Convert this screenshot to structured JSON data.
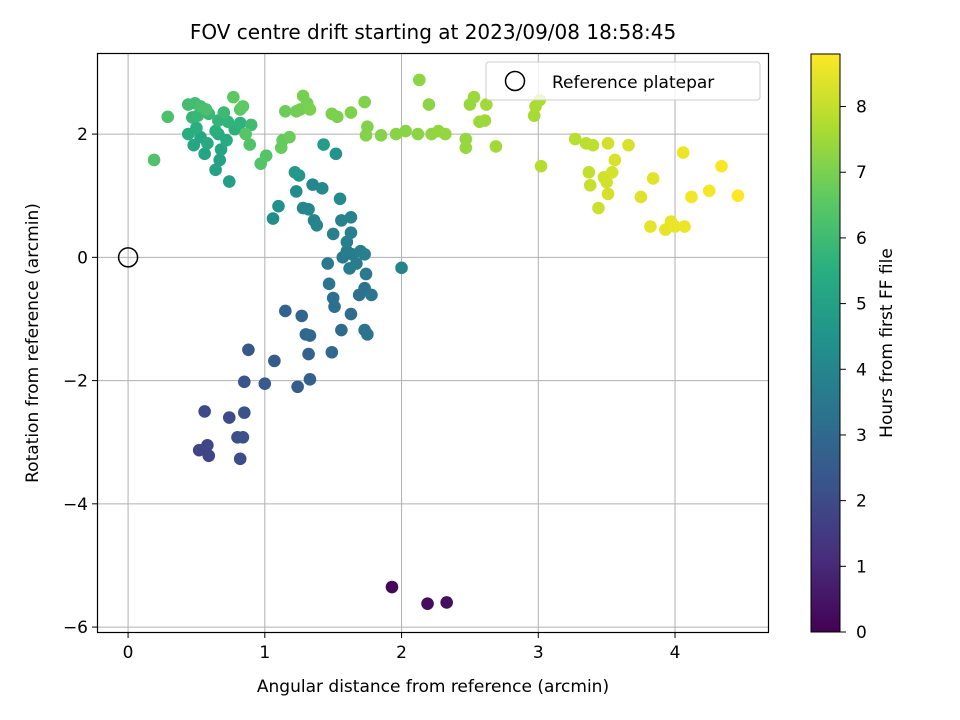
{
  "chart_data": {
    "type": "scatter",
    "title": "FOV centre drift starting at 2023/09/08 18:58:45",
    "xlabel": "Angular distance from reference (arcmin)",
    "ylabel": "Rotation from reference (arcmin)",
    "xlim": [
      -0.22,
      4.68
    ],
    "ylim": [
      -6.08,
      3.3
    ],
    "xticks": [
      0,
      1,
      2,
      3,
      4
    ],
    "xtick_labels": [
      "0",
      "1",
      "2",
      "3",
      "4"
    ],
    "yticks": [
      -6,
      -4,
      -2,
      0,
      2
    ],
    "ytick_labels": [
      "−6",
      "−4",
      "−2",
      "0",
      "2"
    ],
    "grid": true,
    "legend": {
      "placement": "top-right",
      "entries": [
        "Reference platepar"
      ]
    },
    "reference_point": {
      "label": "Reference platepar",
      "x": 0,
      "y": 0
    },
    "colorbar": {
      "label": "Hours from first FF file",
      "colormap": "viridis",
      "range": [
        0,
        8.8
      ],
      "ticks": [
        0,
        1,
        2,
        3,
        4,
        5,
        6,
        7,
        8
      ],
      "tick_labels": [
        "0",
        "1",
        "2",
        "3",
        "4",
        "5",
        "6",
        "7",
        "8"
      ]
    },
    "series": [
      {
        "points": [
          {
            "x": 1.93,
            "y": -5.35,
            "t": 0.15
          },
          {
            "x": 2.19,
            "y": -5.62,
            "t": 0.25
          },
          {
            "x": 2.33,
            "y": -5.6,
            "t": 0.35
          },
          {
            "x": 0.52,
            "y": -3.13,
            "t": 1.8
          },
          {
            "x": 0.59,
            "y": -3.22,
            "t": 1.85
          },
          {
            "x": 0.58,
            "y": -3.05,
            "t": 1.9
          },
          {
            "x": 0.56,
            "y": -2.5,
            "t": 1.95
          },
          {
            "x": 0.74,
            "y": -2.6,
            "t": 2.0
          },
          {
            "x": 0.82,
            "y": -3.27,
            "t": 2.05
          },
          {
            "x": 0.8,
            "y": -2.92,
            "t": 2.1
          },
          {
            "x": 0.84,
            "y": -2.92,
            "t": 2.15
          },
          {
            "x": 0.85,
            "y": -2.52,
            "t": 2.2
          },
          {
            "x": 0.85,
            "y": -2.02,
            "t": 2.3
          },
          {
            "x": 0.88,
            "y": -1.5,
            "t": 2.4
          },
          {
            "x": 1.0,
            "y": -2.05,
            "t": 2.5
          },
          {
            "x": 1.07,
            "y": -1.68,
            "t": 2.55
          },
          {
            "x": 1.24,
            "y": -2.1,
            "t": 2.6
          },
          {
            "x": 1.33,
            "y": -1.98,
            "t": 2.7
          },
          {
            "x": 1.32,
            "y": -1.57,
            "t": 2.75
          },
          {
            "x": 1.15,
            "y": -0.87,
            "t": 2.8
          },
          {
            "x": 1.27,
            "y": -0.95,
            "t": 2.85
          },
          {
            "x": 1.3,
            "y": -1.25,
            "t": 2.9
          },
          {
            "x": 1.33,
            "y": -1.27,
            "t": 2.95
          },
          {
            "x": 1.49,
            "y": -1.54,
            "t": 3.0
          },
          {
            "x": 1.56,
            "y": -1.18,
            "t": 3.05
          },
          {
            "x": 1.63,
            "y": -0.92,
            "t": 3.1
          },
          {
            "x": 1.5,
            "y": -0.66,
            "t": 3.15
          },
          {
            "x": 1.51,
            "y": -0.8,
            "t": 3.2
          },
          {
            "x": 1.69,
            "y": -0.61,
            "t": 3.25
          },
          {
            "x": 1.73,
            "y": -0.5,
            "t": 3.3
          },
          {
            "x": 1.73,
            "y": -1.18,
            "t": 3.35
          },
          {
            "x": 1.75,
            "y": -1.25,
            "t": 3.38
          },
          {
            "x": 1.78,
            "y": -0.61,
            "t": 3.42
          },
          {
            "x": 1.47,
            "y": -0.43,
            "t": 3.45
          },
          {
            "x": 1.46,
            "y": -0.1,
            "t": 3.5
          },
          {
            "x": 1.74,
            "y": -0.27,
            "t": 3.55
          },
          {
            "x": 1.57,
            "y": 0.0,
            "t": 3.6
          },
          {
            "x": 1.6,
            "y": 0.1,
            "t": 3.62
          },
          {
            "x": 1.62,
            "y": -0.18,
            "t": 3.65
          },
          {
            "x": 1.64,
            "y": 0.05,
            "t": 3.68
          },
          {
            "x": 1.67,
            "y": -0.1,
            "t": 3.7
          },
          {
            "x": 1.7,
            "y": 0.1,
            "t": 3.72
          },
          {
            "x": 1.73,
            "y": 0.05,
            "t": 3.75
          },
          {
            "x": 1.6,
            "y": 0.25,
            "t": 3.78
          },
          {
            "x": 1.63,
            "y": 0.4,
            "t": 3.8
          },
          {
            "x": 1.5,
            "y": 0.38,
            "t": 3.82
          },
          {
            "x": 1.56,
            "y": 0.6,
            "t": 3.85
          },
          {
            "x": 1.63,
            "y": 0.65,
            "t": 3.88
          },
          {
            "x": 2.0,
            "y": -0.17,
            "t": 3.9
          },
          {
            "x": 1.36,
            "y": 0.6,
            "t": 3.93
          },
          {
            "x": 1.38,
            "y": 0.52,
            "t": 3.95
          },
          {
            "x": 1.28,
            "y": 0.8,
            "t": 3.98
          },
          {
            "x": 1.32,
            "y": 0.78,
            "t": 4.0
          },
          {
            "x": 1.35,
            "y": 1.18,
            "t": 4.05
          },
          {
            "x": 1.42,
            "y": 1.12,
            "t": 4.1
          },
          {
            "x": 1.55,
            "y": 0.95,
            "t": 4.15
          },
          {
            "x": 1.23,
            "y": 1.07,
            "t": 4.2
          },
          {
            "x": 1.06,
            "y": 0.63,
            "t": 4.3
          },
          {
            "x": 1.1,
            "y": 0.83,
            "t": 4.4
          },
          {
            "x": 1.52,
            "y": 1.68,
            "t": 4.5
          },
          {
            "x": 1.25,
            "y": 1.33,
            "t": 4.6
          },
          {
            "x": 1.22,
            "y": 1.38,
            "t": 4.7
          },
          {
            "x": 1.43,
            "y": 1.83,
            "t": 4.8
          },
          {
            "x": 0.74,
            "y": 1.23,
            "t": 4.9
          },
          {
            "x": 0.64,
            "y": 1.42,
            "t": 5.0
          },
          {
            "x": 0.67,
            "y": 1.58,
            "t": 5.05
          },
          {
            "x": 0.56,
            "y": 1.68,
            "t": 5.1
          },
          {
            "x": 0.68,
            "y": 1.75,
            "t": 5.15
          },
          {
            "x": 0.48,
            "y": 1.82,
            "t": 5.2
          },
          {
            "x": 0.53,
            "y": 1.95,
            "t": 5.25
          },
          {
            "x": 0.58,
            "y": 1.85,
            "t": 5.3
          },
          {
            "x": 0.66,
            "y": 2.0,
            "t": 5.35
          },
          {
            "x": 0.72,
            "y": 1.9,
            "t": 5.4
          },
          {
            "x": 0.44,
            "y": 2.0,
            "t": 5.45
          },
          {
            "x": 0.5,
            "y": 2.1,
            "t": 5.5
          },
          {
            "x": 0.64,
            "y": 2.05,
            "t": 5.55
          },
          {
            "x": 0.78,
            "y": 2.08,
            "t": 5.6
          },
          {
            "x": 0.82,
            "y": 2.18,
            "t": 5.65
          },
          {
            "x": 0.73,
            "y": 2.2,
            "t": 5.7
          },
          {
            "x": 0.66,
            "y": 2.22,
            "t": 5.75
          },
          {
            "x": 0.47,
            "y": 2.27,
            "t": 5.8
          },
          {
            "x": 0.51,
            "y": 2.3,
            "t": 5.85
          },
          {
            "x": 0.59,
            "y": 2.33,
            "t": 5.9
          },
          {
            "x": 0.7,
            "y": 2.35,
            "t": 5.95
          },
          {
            "x": 0.9,
            "y": 2.15,
            "t": 6.0
          },
          {
            "x": 0.44,
            "y": 2.48,
            "t": 6.05
          },
          {
            "x": 0.49,
            "y": 2.5,
            "t": 6.1
          },
          {
            "x": 0.53,
            "y": 2.45,
            "t": 6.15
          },
          {
            "x": 0.57,
            "y": 2.4,
            "t": 6.2
          },
          {
            "x": 0.29,
            "y": 2.28,
            "t": 6.25
          },
          {
            "x": 0.19,
            "y": 1.58,
            "t": 6.3
          },
          {
            "x": 0.89,
            "y": 1.83,
            "t": 6.3
          },
          {
            "x": 0.97,
            "y": 1.52,
            "t": 6.35
          },
          {
            "x": 1.01,
            "y": 1.65,
            "t": 6.4
          },
          {
            "x": 0.86,
            "y": 2.0,
            "t": 6.45
          },
          {
            "x": 0.82,
            "y": 2.4,
            "t": 6.5
          },
          {
            "x": 0.77,
            "y": 2.6,
            "t": 6.55
          },
          {
            "x": 0.84,
            "y": 2.45,
            "t": 6.6
          },
          {
            "x": 1.13,
            "y": 1.9,
            "t": 6.65
          },
          {
            "x": 1.12,
            "y": 1.78,
            "t": 6.7
          },
          {
            "x": 1.18,
            "y": 1.95,
            "t": 6.75
          },
          {
            "x": 1.15,
            "y": 2.37,
            "t": 6.8
          },
          {
            "x": 1.23,
            "y": 2.37,
            "t": 6.85
          },
          {
            "x": 1.26,
            "y": 2.4,
            "t": 6.9
          },
          {
            "x": 1.31,
            "y": 2.5,
            "t": 6.93
          },
          {
            "x": 1.28,
            "y": 2.62,
            "t": 6.95
          },
          {
            "x": 1.33,
            "y": 2.4,
            "t": 6.98
          },
          {
            "x": 1.49,
            "y": 2.33,
            "t": 7.0
          },
          {
            "x": 1.53,
            "y": 2.28,
            "t": 7.02
          },
          {
            "x": 1.63,
            "y": 2.35,
            "t": 7.05
          },
          {
            "x": 1.73,
            "y": 2.52,
            "t": 7.08
          },
          {
            "x": 1.75,
            "y": 2.12,
            "t": 7.1
          },
          {
            "x": 1.74,
            "y": 1.98,
            "t": 7.12
          },
          {
            "x": 1.85,
            "y": 1.98,
            "t": 7.15
          },
          {
            "x": 1.96,
            "y": 2.0,
            "t": 7.18
          },
          {
            "x": 2.03,
            "y": 2.05,
            "t": 7.2
          },
          {
            "x": 2.12,
            "y": 2.0,
            "t": 7.22
          },
          {
            "x": 2.2,
            "y": 2.48,
            "t": 7.25
          },
          {
            "x": 2.13,
            "y": 2.88,
            "t": 7.28
          },
          {
            "x": 2.22,
            "y": 2.0,
            "t": 7.3
          },
          {
            "x": 2.27,
            "y": 2.05,
            "t": 7.32
          },
          {
            "x": 2.32,
            "y": 2.0,
            "t": 7.35
          },
          {
            "x": 2.47,
            "y": 1.92,
            "t": 7.38
          },
          {
            "x": 2.47,
            "y": 1.78,
            "t": 7.4
          },
          {
            "x": 2.5,
            "y": 2.48,
            "t": 7.42
          },
          {
            "x": 2.53,
            "y": 2.6,
            "t": 7.45
          },
          {
            "x": 2.57,
            "y": 2.2,
            "t": 7.48
          },
          {
            "x": 2.61,
            "y": 2.22,
            "t": 7.5
          },
          {
            "x": 2.62,
            "y": 2.48,
            "t": 7.52
          },
          {
            "x": 2.69,
            "y": 1.8,
            "t": 7.55
          },
          {
            "x": 2.97,
            "y": 2.3,
            "t": 7.6
          },
          {
            "x": 2.98,
            "y": 2.45,
            "t": 7.65
          },
          {
            "x": 3.01,
            "y": 2.55,
            "t": 7.7
          },
          {
            "x": 3.02,
            "y": 1.48,
            "t": 7.8
          },
          {
            "x": 3.27,
            "y": 1.92,
            "t": 7.85
          },
          {
            "x": 3.35,
            "y": 1.85,
            "t": 7.9
          },
          {
            "x": 3.4,
            "y": 1.82,
            "t": 7.95
          },
          {
            "x": 3.37,
            "y": 1.38,
            "t": 8.0
          },
          {
            "x": 3.38,
            "y": 1.17,
            "t": 8.05
          },
          {
            "x": 3.44,
            "y": 0.8,
            "t": 8.1
          },
          {
            "x": 3.48,
            "y": 1.3,
            "t": 8.15
          },
          {
            "x": 3.5,
            "y": 1.22,
            "t": 8.18
          },
          {
            "x": 3.51,
            "y": 1.85,
            "t": 8.2
          },
          {
            "x": 3.51,
            "y": 1.03,
            "t": 8.22
          },
          {
            "x": 3.54,
            "y": 1.38,
            "t": 8.25
          },
          {
            "x": 3.56,
            "y": 1.58,
            "t": 8.28
          },
          {
            "x": 3.66,
            "y": 1.82,
            "t": 8.3
          },
          {
            "x": 3.75,
            "y": 0.98,
            "t": 8.35
          },
          {
            "x": 3.84,
            "y": 1.28,
            "t": 8.4
          },
          {
            "x": 3.82,
            "y": 0.5,
            "t": 8.45
          },
          {
            "x": 3.93,
            "y": 0.45,
            "t": 8.5
          },
          {
            "x": 3.97,
            "y": 0.58,
            "t": 8.52
          },
          {
            "x": 4.0,
            "y": 0.5,
            "t": 8.55
          },
          {
            "x": 4.07,
            "y": 0.5,
            "t": 8.58
          },
          {
            "x": 4.06,
            "y": 1.7,
            "t": 8.6
          },
          {
            "x": 4.12,
            "y": 0.98,
            "t": 8.65
          },
          {
            "x": 4.25,
            "y": 1.08,
            "t": 8.7
          },
          {
            "x": 4.34,
            "y": 1.48,
            "t": 8.75
          },
          {
            "x": 4.46,
            "y": 1.0,
            "t": 8.8
          }
        ]
      }
    ]
  }
}
